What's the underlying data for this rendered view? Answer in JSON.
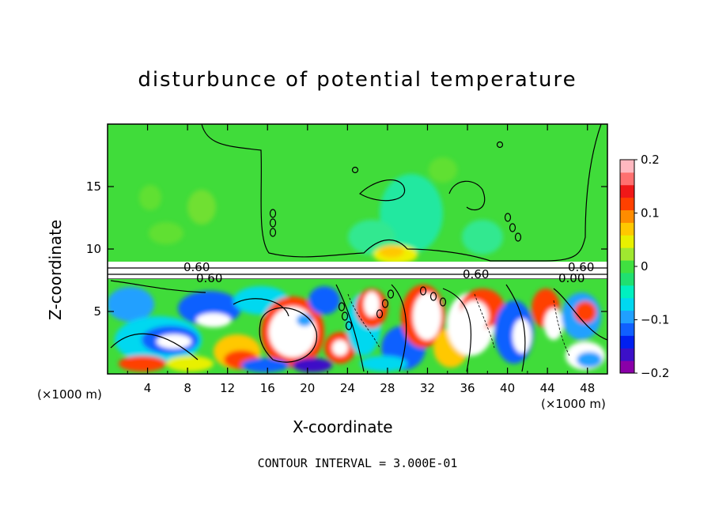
{
  "chart_data": {
    "type": "heatmap",
    "title": "disturbunce of potential temperature",
    "xlabel": "X-coordinate",
    "ylabel": "Z-coordinate",
    "x_unit": "(×1000 m)",
    "footer": "CONTOUR INTERVAL = 3.000E-01",
    "xlim": [
      0,
      50
    ],
    "ylim": [
      0,
      20
    ],
    "x_ticks": [
      4,
      8,
      12,
      16,
      20,
      24,
      28,
      32,
      36,
      40,
      44,
      48
    ],
    "y_ticks": [
      5,
      10,
      15
    ],
    "colorbar": {
      "min": -0.2,
      "max": 0.2,
      "tick_values": [
        0.2,
        0.1,
        0,
        -0.1,
        -0.2
      ],
      "tick_labels": [
        "0.2",
        "0.1",
        "0",
        "−0.1",
        "−0.2"
      ],
      "colors": [
        "#8a00a8",
        "#3c10c8",
        "#0020f0",
        "#1060ff",
        "#20a0ff",
        "#00d8f0",
        "#00f0c0",
        "#20e070",
        "#40e040",
        "#a0e830",
        "#e8f000",
        "#ffc800",
        "#ff8c00",
        "#ff4000",
        "#f01818",
        "#ff7070",
        "#ffb8c0"
      ]
    },
    "contour_labels": [
      "0.60",
      "0.60",
      "0.60",
      "0.60",
      "0.00"
    ],
    "regions": {
      "upper_value": 0.02,
      "band_value": 0.6,
      "band_z": [
        7.8,
        9.0
      ],
      "lower_range": [
        -0.2,
        0.2
      ]
    }
  }
}
